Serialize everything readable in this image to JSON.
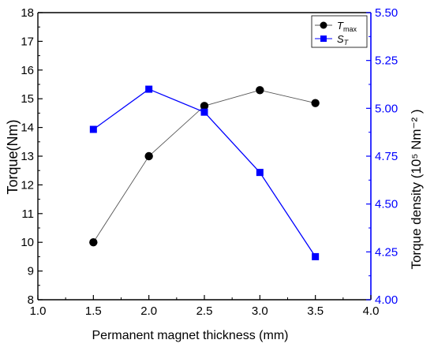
{
  "colors": {
    "left_axis": "#000000",
    "right_axis": "#0000ff",
    "series1_line": "#555555",
    "series1_marker": "#000000",
    "series2": "#0000ff"
  },
  "chart_data": {
    "type": "line",
    "title": "",
    "xlabel": "Permanent magnet thickness (mm)",
    "ylabel_left": "Torque(Nm)",
    "ylabel_right": "Torque density (10⁵ Nm⁻² )",
    "xlim": [
      1.0,
      4.0
    ],
    "ylim_left": [
      8,
      18
    ],
    "ylim_right": [
      4.0,
      5.5
    ],
    "x_ticks": [
      "1.0",
      "1.5",
      "2.0",
      "2.5",
      "3.0",
      "3.5",
      "4.0"
    ],
    "y_left_ticks": [
      "8",
      "9",
      "10",
      "11",
      "12",
      "13",
      "14",
      "15",
      "16",
      "17",
      "18"
    ],
    "y_right_ticks": [
      "4.00",
      "4.25",
      "4.50",
      "4.75",
      "5.00",
      "5.25",
      "5.50"
    ],
    "grid": false,
    "legend_position": "top-right",
    "series": [
      {
        "name": "T_max",
        "legend_main": "T",
        "legend_sub": "max",
        "axis": "left",
        "marker": "circle",
        "x": [
          1.5,
          2.0,
          2.5,
          3.0,
          3.5
        ],
        "values": [
          10.0,
          13.0,
          14.75,
          15.3,
          14.85
        ]
      },
      {
        "name": "S_T",
        "legend_main": "S",
        "legend_sub": "T",
        "axis": "right",
        "marker": "square",
        "x": [
          1.5,
          2.0,
          2.5,
          3.0,
          3.5
        ],
        "values": [
          4.89,
          5.1,
          4.98,
          4.665,
          4.225
        ]
      }
    ]
  }
}
